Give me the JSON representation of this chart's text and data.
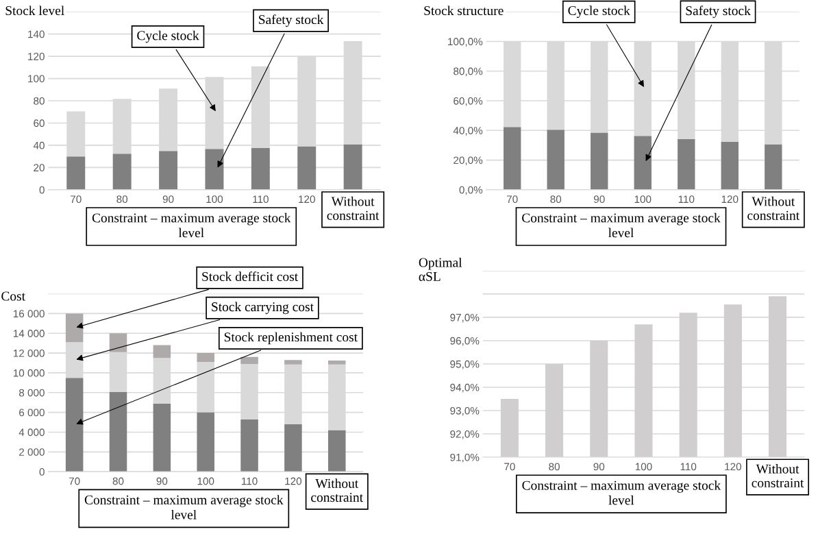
{
  "chart_data": [
    {
      "type": "bar",
      "stacked": true,
      "ylabel": "Stock level",
      "xlabel": "Constraint – maximum average stock level",
      "categories": [
        "70",
        "80",
        "90",
        "100",
        "110",
        "120",
        "Without constraint"
      ],
      "series": [
        {
          "name": "Safety stock",
          "color": "#808080",
          "values": [
            30,
            32.4,
            34.8,
            36.7,
            37.6,
            39,
            40.9
          ]
        },
        {
          "name": "Cycle stock",
          "color": "#d9d9d9",
          "values": [
            40.5,
            49.3,
            56.1,
            64.8,
            73.4,
            81.2,
            92.8
          ]
        }
      ],
      "ylim": [
        0,
        160
      ],
      "yticks": [
        0,
        20,
        40,
        60,
        80,
        100,
        120,
        140,
        {
          "value": 160,
          "label": null
        }
      ],
      "grid": "y"
    },
    {
      "type": "bar",
      "stacked": true,
      "ylabel": "Stock structure",
      "xlabel": "Constraint – maximum average stock level",
      "categories": [
        "70",
        "80",
        "90",
        "100",
        "110",
        "120",
        "Without constraint"
      ],
      "series": [
        {
          "name": "Safety stock",
          "color": "#808080",
          "values": [
            42.3,
            40.5,
            38.5,
            36.3,
            34.2,
            32.4,
            30.7
          ]
        },
        {
          "name": "Cycle stock",
          "color": "#d9d9d9",
          "values": [
            57.7,
            59.5,
            61.5,
            63.7,
            65.8,
            67.6,
            69.3
          ]
        }
      ],
      "ylim": [
        0,
        120
      ],
      "yticks": [
        {
          "value": 0,
          "label": "0,0%"
        },
        {
          "value": 20,
          "label": "20,0%"
        },
        {
          "value": 40,
          "label": "40,0%"
        },
        {
          "value": 60,
          "label": "60,0%"
        },
        {
          "value": 80,
          "label": "80,0%"
        },
        {
          "value": 100,
          "label": "100,0%"
        },
        {
          "value": 120,
          "label": null
        }
      ],
      "grid": "y"
    },
    {
      "type": "bar",
      "stacked": true,
      "ylabel": "Cost",
      "xlabel": "Constraint – maximum average stock level",
      "categories": [
        "70",
        "80",
        "90",
        "100",
        "110",
        "120",
        "Without constraint"
      ],
      "series": [
        {
          "name": "Stock replenishment cost",
          "color": "#808080",
          "values": [
            9500,
            8050,
            6900,
            6000,
            5300,
            4800,
            4200
          ]
        },
        {
          "name": "Stock carrying cost",
          "color": "#d9d9d9",
          "values": [
            3600,
            4050,
            4600,
            5100,
            5600,
            6050,
            6650
          ]
        },
        {
          "name": "Stock defficit cost",
          "color": "#aeaaaa",
          "values": [
            2900,
            1900,
            1300,
            900,
            700,
            450,
            400
          ]
        }
      ],
      "ylim": [
        0,
        18000
      ],
      "yticks": [
        0,
        {
          "value": 2000,
          "label": "2 000"
        },
        {
          "value": 4000,
          "label": "4 000"
        },
        {
          "value": 6000,
          "label": "6 000"
        },
        {
          "value": 8000,
          "label": "8 000"
        },
        {
          "value": 10000,
          "label": "10 000"
        },
        {
          "value": 12000,
          "label": "12 000"
        },
        {
          "value": 14000,
          "label": "14 000"
        },
        {
          "value": 16000,
          "label": "16 000"
        },
        {
          "value": 18000,
          "label": null
        }
      ],
      "grid": "y"
    },
    {
      "type": "bar",
      "ylabel": "Optimal αSL",
      "xlabel": "Constraint – maximum average stock level",
      "categories": [
        "70",
        "80",
        "90",
        "100",
        "110",
        "120",
        "Without constraint"
      ],
      "values": [
        93.5,
        95.0,
        96.0,
        96.7,
        97.2,
        97.55,
        97.9
      ],
      "color": "#d0cece",
      "ylim": [
        91,
        99
      ],
      "yticks": [
        {
          "value": 91,
          "label": "91,0%"
        },
        {
          "value": 92,
          "label": "92,0%"
        },
        {
          "value": 93,
          "label": "93,0%"
        },
        {
          "value": 94,
          "label": "94,0%"
        },
        {
          "value": 95,
          "label": "95,0%"
        },
        {
          "value": 96,
          "label": "96,0%"
        },
        {
          "value": 97,
          "label": "97,0%"
        },
        {
          "value": 98,
          "label": null
        },
        {
          "value": 99,
          "label": null
        }
      ],
      "grid": "y"
    }
  ]
}
